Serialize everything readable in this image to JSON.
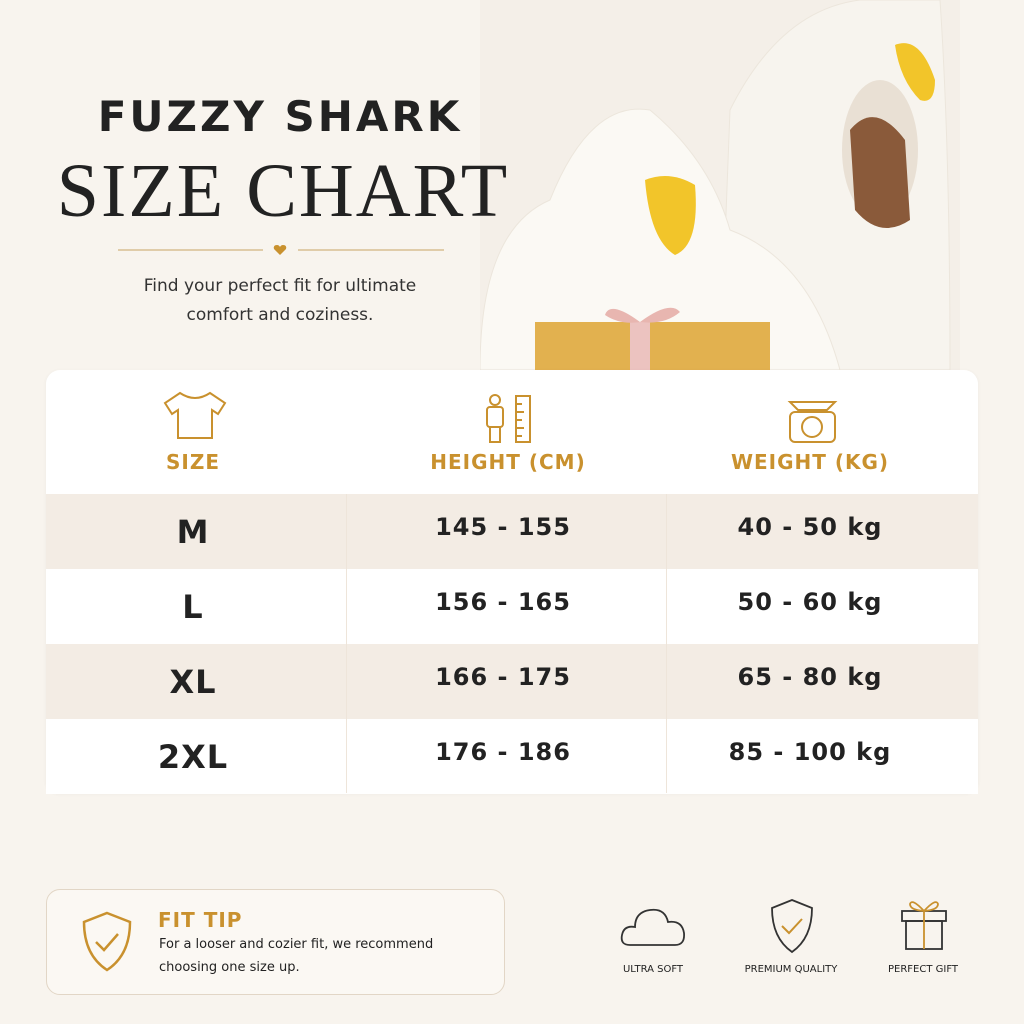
{
  "header": {
    "brand": "FUZZY SHARK",
    "title": "SIZE CHART",
    "subtitle_lines": [
      "Find your perfect fit for ultimate",
      "comfort and coziness."
    ]
  },
  "table": {
    "columns": [
      "SIZE",
      "HEIGHT (CM)",
      "WEIGHT (KG)"
    ],
    "rows": [
      [
        "M",
        "145 - 155",
        "40 - 50 kg"
      ],
      [
        "L",
        "156 - 165",
        "50 - 60 kg"
      ],
      [
        "XL",
        "166 - 175",
        "65 - 80 kg"
      ],
      [
        "2XL",
        "176 - 186",
        "85 - 100 kg"
      ]
    ]
  },
  "fit_tip": {
    "title": "FIT TIP",
    "lines": [
      "For a looser and cozier fit, we recommend",
      "choosing one size up."
    ]
  },
  "features": [
    "ULTRA SOFT",
    "PREMIUM QUALITY",
    "PERFECT GIFT"
  ]
}
